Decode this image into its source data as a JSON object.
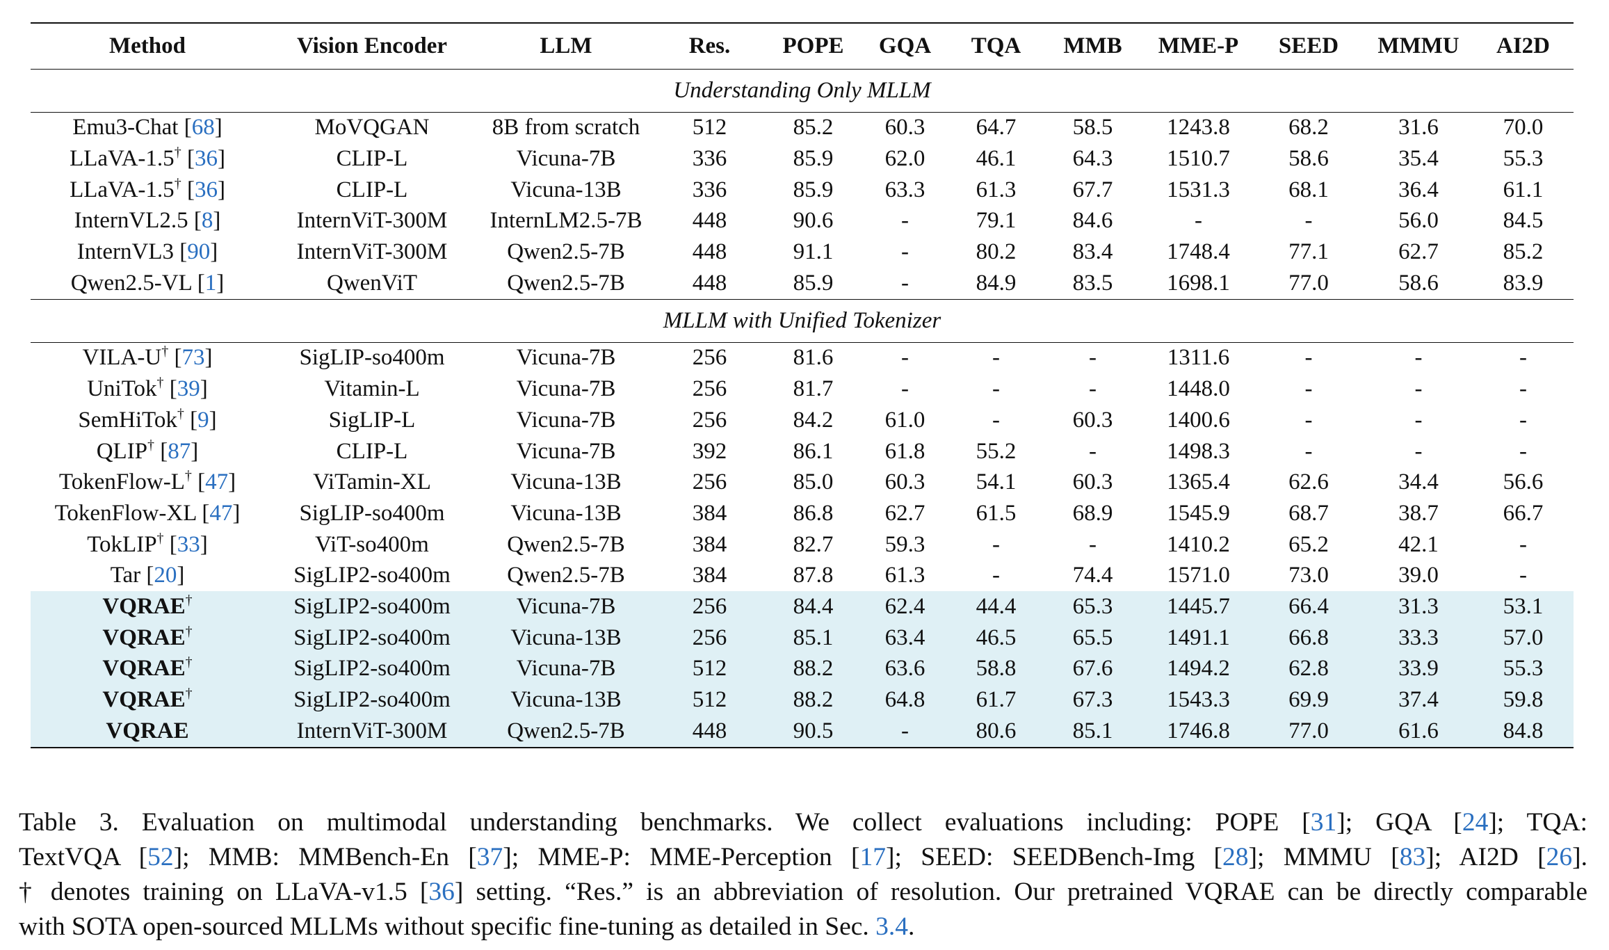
{
  "headers": [
    "Method",
    "Vision Encoder",
    "LLM",
    "Res.",
    "POPE",
    "GQA",
    "TQA",
    "MMB",
    "MME-P",
    "SEED",
    "MMMU",
    "AI2D"
  ],
  "sections": [
    {
      "title": "Understanding Only MLLM",
      "rows": [
        {
          "method": "Emu3-Chat",
          "sup": "",
          "ref": "68",
          "bold": false,
          "hl": false,
          "cells": [
            "MoVQGAN",
            "8B from scratch",
            "512",
            "85.2",
            "60.3",
            "64.7",
            "58.5",
            "1243.8",
            "68.2",
            "31.6",
            "70.0"
          ]
        },
        {
          "method": "LLaVA-1.5",
          "sup": "†",
          "ref": "36",
          "bold": false,
          "hl": false,
          "cells": [
            "CLIP-L",
            "Vicuna-7B",
            "336",
            "85.9",
            "62.0",
            "46.1",
            "64.3",
            "1510.7",
            "58.6",
            "35.4",
            "55.3"
          ]
        },
        {
          "method": "LLaVA-1.5",
          "sup": "†",
          "ref": "36",
          "bold": false,
          "hl": false,
          "cells": [
            "CLIP-L",
            "Vicuna-13B",
            "336",
            "85.9",
            "63.3",
            "61.3",
            "67.7",
            "1531.3",
            "68.1",
            "36.4",
            "61.1"
          ]
        },
        {
          "method": "InternVL2.5",
          "sup": "",
          "ref": "8",
          "bold": false,
          "hl": false,
          "cells": [
            "InternViT-300M",
            "InternLM2.5-7B",
            "448",
            "90.6",
            "-",
            "79.1",
            "84.6",
            "-",
            "-",
            "56.0",
            "84.5"
          ]
        },
        {
          "method": "InternVL3",
          "sup": "",
          "ref": "90",
          "bold": false,
          "hl": false,
          "cells": [
            "InternViT-300M",
            "Qwen2.5-7B",
            "448",
            "91.1",
            "-",
            "80.2",
            "83.4",
            "1748.4",
            "77.1",
            "62.7",
            "85.2"
          ]
        },
        {
          "method": "Qwen2.5-VL",
          "sup": "",
          "ref": "1",
          "bold": false,
          "hl": false,
          "cells": [
            "QwenViT",
            "Qwen2.5-7B",
            "448",
            "85.9",
            "-",
            "84.9",
            "83.5",
            "1698.1",
            "77.0",
            "58.6",
            "83.9"
          ]
        }
      ]
    },
    {
      "title": "MLLM with Unified Tokenizer",
      "rows": [
        {
          "method": "VILA-U",
          "sup": "†",
          "ref": "73",
          "bold": false,
          "hl": false,
          "cells": [
            "SigLIP-so400m",
            "Vicuna-7B",
            "256",
            "81.6",
            "-",
            "-",
            "-",
            "1311.6",
            "-",
            "-",
            "-"
          ]
        },
        {
          "method": "UniTok",
          "sup": "†",
          "ref": "39",
          "bold": false,
          "hl": false,
          "cells": [
            "Vitamin-L",
            "Vicuna-7B",
            "256",
            "81.7",
            "-",
            "-",
            "-",
            "1448.0",
            "-",
            "-",
            "-"
          ]
        },
        {
          "method": "SemHiTok",
          "sup": "†",
          "ref": "9",
          "bold": false,
          "hl": false,
          "cells": [
            "SigLIP-L",
            "Vicuna-7B",
            "256",
            "84.2",
            "61.0",
            "-",
            "60.3",
            "1400.6",
            "-",
            "-",
            "-"
          ]
        },
        {
          "method": "QLIP",
          "sup": "†",
          "ref": "87",
          "bold": false,
          "hl": false,
          "cells": [
            "CLIP-L",
            "Vicuna-7B",
            "392",
            "86.1",
            "61.8",
            "55.2",
            "-",
            "1498.3",
            "-",
            "-",
            "-"
          ]
        },
        {
          "method": "TokenFlow-L",
          "sup": "†",
          "ref": "47",
          "bold": false,
          "hl": false,
          "cells": [
            "ViTamin-XL",
            "Vicuna-13B",
            "256",
            "85.0",
            "60.3",
            "54.1",
            "60.3",
            "1365.4",
            "62.6",
            "34.4",
            "56.6"
          ]
        },
        {
          "method": "TokenFlow-XL",
          "sup": "",
          "ref": "47",
          "bold": false,
          "hl": false,
          "cells": [
            "SigLIP-so400m",
            "Vicuna-13B",
            "384",
            "86.8",
            "62.7",
            "61.5",
            "68.9",
            "1545.9",
            "68.7",
            "38.7",
            "66.7"
          ]
        },
        {
          "method": "TokLIP",
          "sup": "†",
          "ref": "33",
          "bold": false,
          "hl": false,
          "cells": [
            "ViT-so400m",
            "Qwen2.5-7B",
            "384",
            "82.7",
            "59.3",
            "-",
            "-",
            "1410.2",
            "65.2",
            "42.1",
            "-"
          ]
        },
        {
          "method": "Tar",
          "sup": "",
          "ref": "20",
          "bold": false,
          "hl": false,
          "cells": [
            "SigLIP2-so400m",
            "Qwen2.5-7B",
            "384",
            "87.8",
            "61.3",
            "-",
            "74.4",
            "1571.0",
            "73.0",
            "39.0",
            "-"
          ]
        },
        {
          "method": "VQRAE",
          "sup": "†",
          "ref": "",
          "bold": true,
          "hl": true,
          "cells": [
            "SigLIP2-so400m",
            "Vicuna-7B",
            "256",
            "84.4",
            "62.4",
            "44.4",
            "65.3",
            "1445.7",
            "66.4",
            "31.3",
            "53.1"
          ]
        },
        {
          "method": "VQRAE",
          "sup": "†",
          "ref": "",
          "bold": true,
          "hl": true,
          "cells": [
            "SigLIP2-so400m",
            "Vicuna-13B",
            "256",
            "85.1",
            "63.4",
            "46.5",
            "65.5",
            "1491.1",
            "66.8",
            "33.3",
            "57.0"
          ]
        },
        {
          "method": "VQRAE",
          "sup": "†",
          "ref": "",
          "bold": true,
          "hl": true,
          "cells": [
            "SigLIP2-so400m",
            "Vicuna-7B",
            "512",
            "88.2",
            "63.6",
            "58.8",
            "67.6",
            "1494.2",
            "62.8",
            "33.9",
            "55.3"
          ]
        },
        {
          "method": "VQRAE",
          "sup": "†",
          "ref": "",
          "bold": true,
          "hl": true,
          "cells": [
            "SigLIP2-so400m",
            "Vicuna-13B",
            "512",
            "88.2",
            "64.8",
            "61.7",
            "67.3",
            "1543.3",
            "69.9",
            "37.4",
            "59.8"
          ]
        },
        {
          "method": "VQRAE",
          "sup": "",
          "ref": "",
          "bold": true,
          "hl": true,
          "cells": [
            "InternViT-300M",
            "Qwen2.5-7B",
            "448",
            "90.5",
            "-",
            "80.6",
            "85.1",
            "1746.8",
            "77.0",
            "61.6",
            "84.8"
          ]
        }
      ]
    }
  ],
  "caption": [
    [
      {
        "t": "Table 3.  Evaluation on multimodal understanding benchmarks.  We collect evaluations including: POPE ["
      },
      {
        "t": "31",
        "link": true
      },
      {
        "t": "]; GQA ["
      },
      {
        "t": "24",
        "link": true
      },
      {
        "t": "]; TQA:"
      }
    ],
    [
      {
        "t": "TextVQA ["
      },
      {
        "t": "52",
        "link": true
      },
      {
        "t": "]; MMB: MMBench-En ["
      },
      {
        "t": "37",
        "link": true
      },
      {
        "t": "]; MME-P: MME-Perception ["
      },
      {
        "t": "17",
        "link": true
      },
      {
        "t": "]; SEED: SEEDBench-Img ["
      },
      {
        "t": "28",
        "link": true
      },
      {
        "t": "]; MMMU ["
      },
      {
        "t": "83",
        "link": true
      },
      {
        "t": "]; AI2D ["
      },
      {
        "t": "26",
        "link": true
      },
      {
        "t": "]."
      }
    ],
    [
      {
        "t": "† denotes training on LLaVA-v1.5 ["
      },
      {
        "t": "36",
        "link": true
      },
      {
        "t": "] setting. “Res.” is an abbreviation of resolution. Our pretrained VQRAE can be directly comparable"
      }
    ],
    [
      {
        "t": "with SOTA open-sourced MLLMs without specific fine-tuning as detailed in Sec. "
      },
      {
        "t": "3.4",
        "link": true
      },
      {
        "t": "."
      }
    ]
  ],
  "colors": {
    "link": "#2a6fc0",
    "highlight": "#dff0f5"
  }
}
